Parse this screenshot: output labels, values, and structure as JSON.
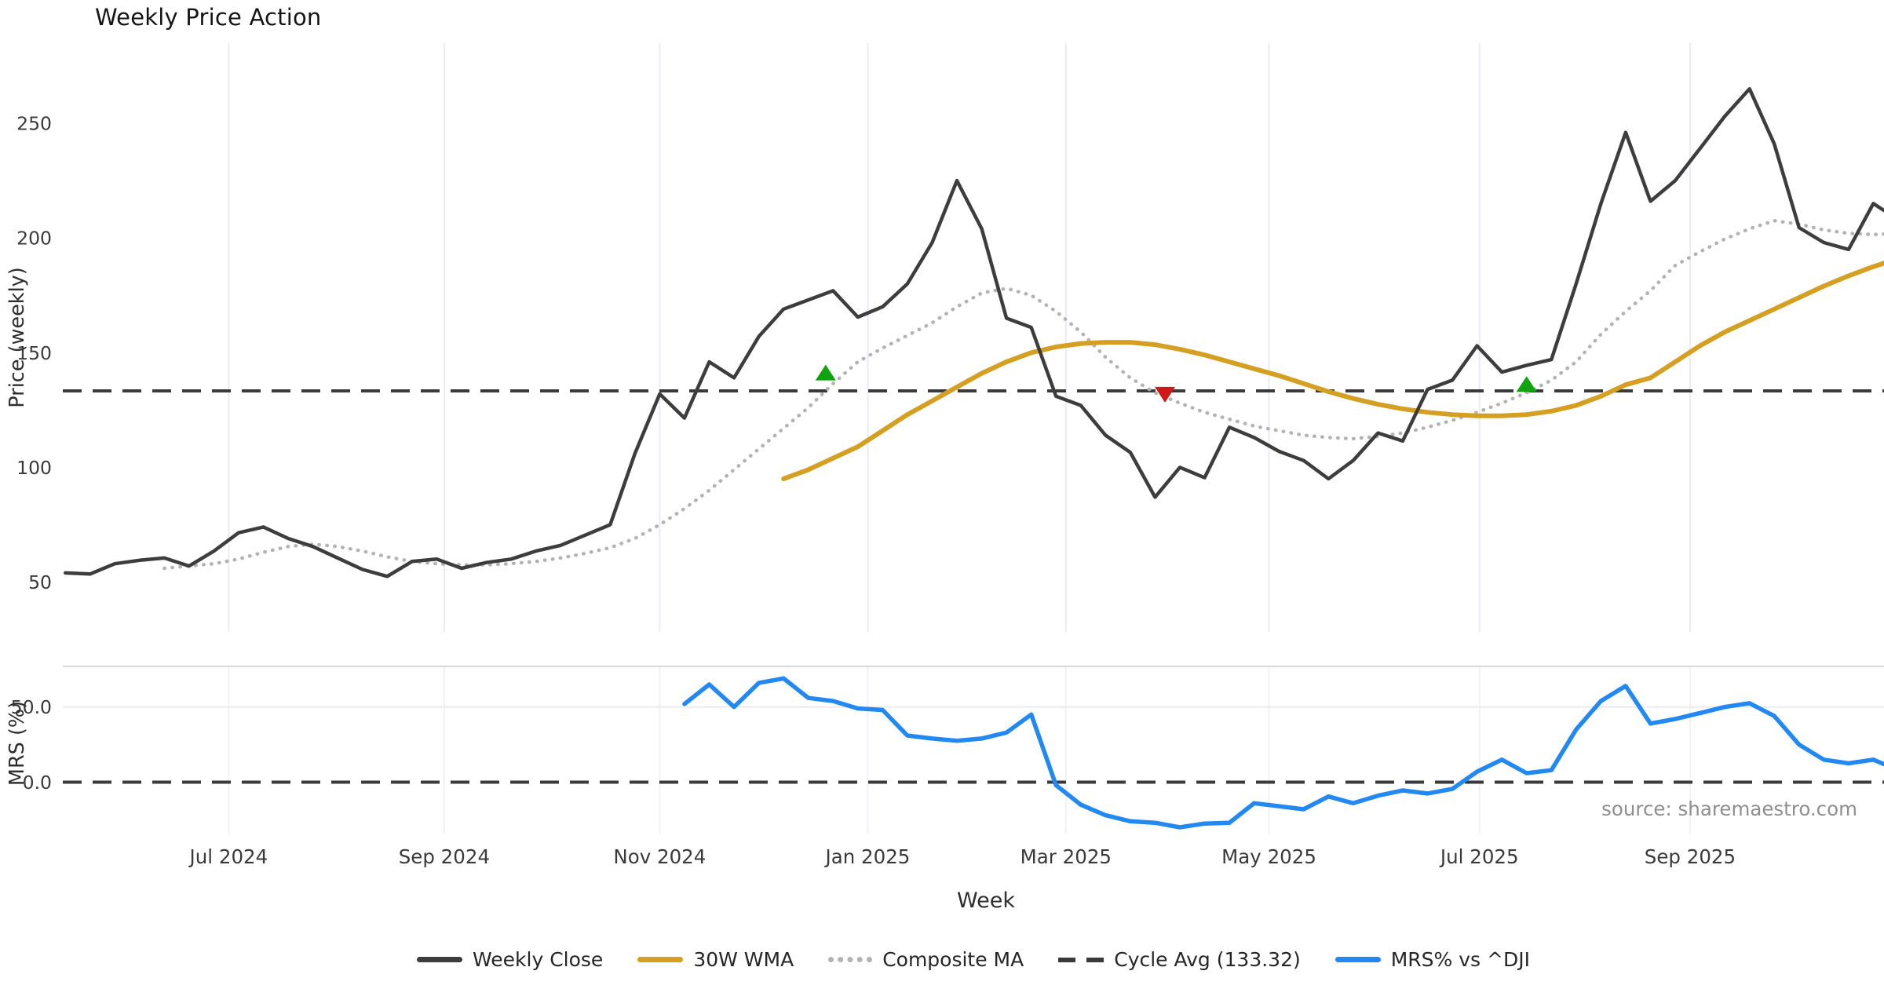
{
  "ui": {
    "title": "Weekly Price Action",
    "source_note": "source: sharemaestro.com"
  },
  "colors": {
    "weekly_close": "#3d3d3d",
    "wma_30w": "#d5a021",
    "composite_ma": "#b3b3b3",
    "cycle_avg": "#3a3a3a",
    "mrs_line": "#2289f2",
    "marker_up": "#0fa30f",
    "marker_down": "#d01818",
    "gridline": "#e9ecf3",
    "gridline_faint": "#f0f2f7",
    "panel_separator": "#d8d8d8",
    "tick_text": "#3a3a3a",
    "source_text": "#8f8f8f"
  },
  "chart_data": [
    {
      "type": "line",
      "panel": "price",
      "title": "Weekly Price Action",
      "xlabel": "Week",
      "ylabel": "Price (weekly)",
      "x_unit": "week_index_from_2024-05-17",
      "xlim": [
        -0.1,
        73.43
      ],
      "ylim": [
        28.3,
        284.9
      ],
      "grid": "vertical-months",
      "yticks": [
        {
          "value": 50,
          "label": "50"
        },
        {
          "value": 100,
          "label": "100"
        },
        {
          "value": 150,
          "label": "150"
        },
        {
          "value": 200,
          "label": "200"
        },
        {
          "value": 250,
          "label": "250"
        }
      ],
      "xticks": [
        {
          "pos": 6.6,
          "label": "Jul 2024"
        },
        {
          "pos": 15.3,
          "label": "Sep 2024"
        },
        {
          "pos": 24.0,
          "label": "Nov 2024"
        },
        {
          "pos": 32.4,
          "label": "Jan 2025"
        },
        {
          "pos": 40.4,
          "label": "Mar 2025"
        },
        {
          "pos": 48.6,
          "label": "May 2025"
        },
        {
          "pos": 57.1,
          "label": "Jul 2025"
        },
        {
          "pos": 65.6,
          "label": "Sep 2025"
        }
      ],
      "series": [
        {
          "name": "Weekly Close",
          "style": "solid",
          "color": "#3d3d3d",
          "width": 4.5,
          "start_index": 0,
          "values": [
            54,
            53.5,
            58,
            59.5,
            60.5,
            57,
            63.5,
            71.5,
            74,
            69,
            65.5,
            60.5,
            55.5,
            52.5,
            59,
            60,
            56,
            58.5,
            60,
            63.5,
            66,
            70.5,
            75,
            106,
            132,
            121.5,
            146,
            139,
            157,
            169,
            173,
            177,
            165.5,
            170,
            180,
            198,
            225,
            204,
            165,
            161,
            131,
            127,
            114,
            106.5,
            87,
            100,
            95.5,
            117.5,
            113,
            107,
            103,
            95,
            103,
            115,
            111.5,
            134,
            138,
            153,
            141.5,
            144.5,
            147,
            180,
            215,
            246,
            216,
            225,
            239,
            253,
            265,
            241,
            204.5,
            198,
            195,
            215,
            208
          ]
        },
        {
          "name": "30W WMA",
          "style": "solid",
          "color": "#d5a021",
          "width": 6,
          "start_index": 29,
          "values": [
            95,
            99,
            104,
            109,
            116,
            123,
            129,
            135,
            141,
            146,
            150,
            152.5,
            154,
            154.5,
            154.5,
            153.5,
            151.5,
            149,
            146,
            143,
            140,
            136.5,
            133,
            130,
            127.5,
            125.5,
            124,
            123,
            122.5,
            122.5,
            123,
            124.5,
            127,
            131,
            136,
            139,
            146,
            153,
            159,
            164,
            169,
            174,
            179,
            183.5,
            187.5,
            191,
            194
          ]
        },
        {
          "name": "Composite MA",
          "style": "dotted",
          "color": "#b3b3b3",
          "width": 4.5,
          "start_index": 4,
          "values": [
            56,
            57,
            58,
            60,
            63,
            65.5,
            66.5,
            65.5,
            63.5,
            61,
            59,
            58,
            57.5,
            57.5,
            58,
            59,
            60.5,
            62.5,
            65,
            69,
            75,
            82,
            90,
            99,
            108,
            117,
            126,
            136.5,
            146,
            152,
            157.5,
            163,
            170,
            176,
            178,
            175,
            168,
            159,
            148,
            139,
            132.5,
            128,
            124,
            121,
            118,
            116,
            114,
            113,
            112.5,
            113.5,
            115,
            117.5,
            120.5,
            124,
            128,
            132.5,
            138,
            146,
            158,
            168,
            177,
            188,
            194,
            199.5,
            204,
            207.5,
            206,
            203.5,
            202,
            201.5,
            202,
            202
          ]
        },
        {
          "name": "Cycle Avg (133.32)",
          "style": "dashed",
          "color": "#3a3a3a",
          "width": 4,
          "constant": 133.32
        }
      ],
      "markers": [
        {
          "shape": "triangle-up",
          "color": "#0fa30f",
          "x": 30.7,
          "y": 141
        },
        {
          "shape": "triangle-down",
          "color": "#d01818",
          "x": 44.4,
          "y": 132
        },
        {
          "shape": "triangle-up",
          "color": "#0fa30f",
          "x": 59.0,
          "y": 136
        }
      ],
      "legend": {
        "position": "bottom-center"
      }
    },
    {
      "type": "line",
      "panel": "oscillator",
      "ylabel": "MRS (%)",
      "xlim": [
        -0.1,
        73.43
      ],
      "ylim": [
        -34.2,
        77
      ],
      "grid": "horizontal-50",
      "yticks": [
        {
          "value": 50,
          "label": "50.0"
        },
        {
          "value": 0,
          "label": "0.0"
        }
      ],
      "zero_line": {
        "style": "dashed",
        "color": "#3a3a3a",
        "value": 0
      },
      "series": [
        {
          "name": "MRS% vs ^DJI",
          "style": "solid",
          "color": "#2289f2",
          "width": 5.5,
          "start_index": 25,
          "values": [
            52,
            65,
            50,
            66,
            69,
            56,
            54,
            49,
            48,
            31,
            29,
            27.5,
            29,
            33,
            45,
            -2,
            -15,
            -22,
            -26,
            -27,
            -30,
            -27.5,
            -27,
            -14,
            -16,
            -18,
            -9.5,
            -14,
            -9,
            -5.5,
            -7.5,
            -4.5,
            7,
            15,
            6,
            8,
            35,
            54,
            64,
            39,
            42,
            46,
            50,
            52.5,
            44,
            25,
            15,
            12.5,
            15,
            8
          ]
        }
      ]
    }
  ]
}
